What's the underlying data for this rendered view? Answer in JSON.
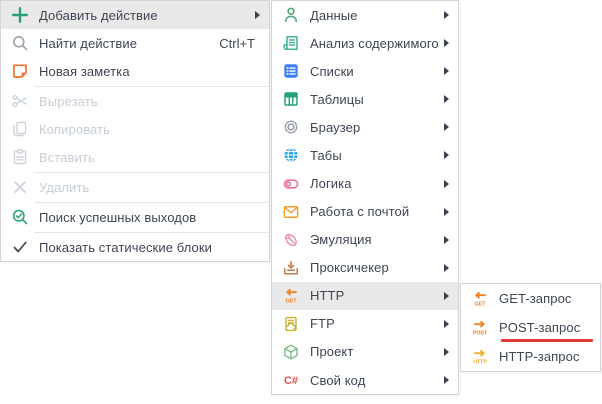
{
  "colors": {
    "highlight_bg": "#e9e9e9",
    "menu_border": "#d2d5d9",
    "text": "#3e4653",
    "disabled_text": "#c7cdd5",
    "annotation": "#e53935",
    "accent_green": "#2a9d77",
    "accent_orange": "#f08021"
  },
  "menus": {
    "context": {
      "items": [
        {
          "type": "item",
          "label": "Добавить действие",
          "icon": "plus-icon",
          "highlighted": true,
          "has_submenu": true
        },
        {
          "type": "item",
          "label": "Найти действие",
          "icon": "find-action-icon",
          "shortcut": "Ctrl+T"
        },
        {
          "type": "item",
          "label": "Новая заметка",
          "icon": "new-note-icon"
        },
        {
          "type": "separator"
        },
        {
          "type": "item",
          "label": "Вырезать",
          "icon": "cut-icon",
          "disabled": true
        },
        {
          "type": "item",
          "label": "Копировать",
          "icon": "copy-icon",
          "disabled": true
        },
        {
          "type": "item",
          "label": "Вставить",
          "icon": "paste-icon",
          "disabled": true
        },
        {
          "type": "separator"
        },
        {
          "type": "item",
          "label": "Удалить",
          "icon": "delete-icon",
          "disabled": true
        },
        {
          "type": "separator"
        },
        {
          "type": "item",
          "label": "Поиск успешных выходов",
          "icon": "search-success-icon"
        },
        {
          "type": "separator"
        },
        {
          "type": "item",
          "label": "Показать статические блоки",
          "icon": "checkmark-icon"
        }
      ]
    },
    "add_action": {
      "items": [
        {
          "type": "item",
          "label": "Данные",
          "icon": "user-icon",
          "has_submenu": true
        },
        {
          "type": "item",
          "label": "Анализ содержимого",
          "icon": "content-analysis-icon",
          "has_submenu": true
        },
        {
          "type": "item",
          "label": "Списки",
          "icon": "lists-icon",
          "has_submenu": true
        },
        {
          "type": "item",
          "label": "Таблицы",
          "icon": "tables-icon",
          "has_submenu": true
        },
        {
          "type": "item",
          "label": "Браузер",
          "icon": "gear-icon",
          "has_submenu": true
        },
        {
          "type": "item",
          "label": "Табы",
          "icon": "globe-icon",
          "has_submenu": true
        },
        {
          "type": "item",
          "label": "Логика",
          "icon": "toggle-icon",
          "has_submenu": true
        },
        {
          "type": "item",
          "label": "Работа с почтой",
          "icon": "mail-icon",
          "has_submenu": true
        },
        {
          "type": "item",
          "label": "Эмуляция",
          "icon": "mouse-icon",
          "has_submenu": true
        },
        {
          "type": "item",
          "label": "Проксичекер",
          "icon": "inbox-download-icon",
          "has_submenu": true
        },
        {
          "type": "item",
          "label": "HTTP",
          "icon": "http-get-arrow-icon",
          "highlighted": true,
          "has_submenu": true
        },
        {
          "type": "item",
          "label": "FTP",
          "icon": "ftp-cloud-icon",
          "has_submenu": true
        },
        {
          "type": "item",
          "label": "Проект",
          "icon": "cube-icon",
          "has_submenu": true
        },
        {
          "type": "item",
          "label": "Свой код",
          "icon": "csharp-icon",
          "has_submenu": true
        }
      ]
    },
    "http": {
      "items": [
        {
          "type": "item",
          "label": "GET-запрос",
          "icon": "get-request-icon"
        },
        {
          "type": "item",
          "label": "POST-запрос",
          "icon": "post-request-icon",
          "annotated": true
        },
        {
          "type": "item",
          "label": "HTTP-запрос",
          "icon": "http-request-icon"
        }
      ]
    }
  }
}
